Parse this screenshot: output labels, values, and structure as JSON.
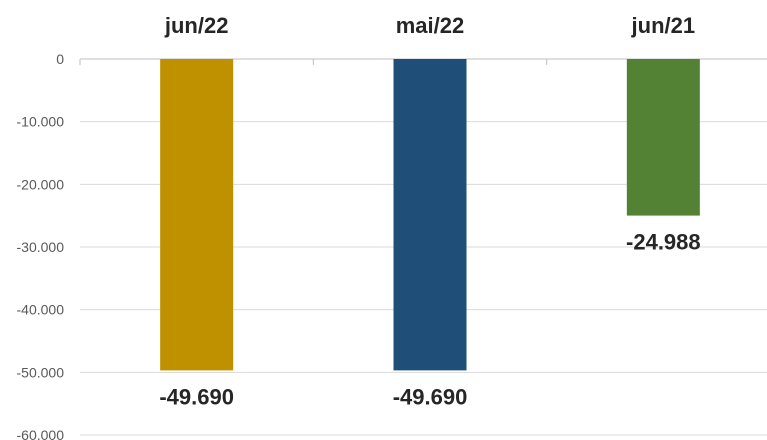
{
  "chart_data": {
    "type": "bar",
    "categories": [
      "jun/22",
      "mai/22",
      "jun/21"
    ],
    "values": [
      -49690,
      -49690,
      -24988
    ],
    "data_labels": [
      "-49.690",
      "-49.690",
      "-24.988"
    ],
    "colors": [
      "#BF9000",
      "#1F4E79",
      "#548235"
    ],
    "category_axis_position": "top",
    "ylim": [
      -60000,
      0
    ],
    "y_ticks": [
      0,
      -10000,
      -20000,
      -30000,
      -40000,
      -50000,
      -60000
    ],
    "y_tick_labels": [
      "0",
      "-10.000",
      "-20.000",
      "-30.000",
      "-40.000",
      "-50.000",
      "-60.000"
    ],
    "grid": true,
    "legend": false,
    "title": "",
    "xlabel": "",
    "ylabel": ""
  }
}
